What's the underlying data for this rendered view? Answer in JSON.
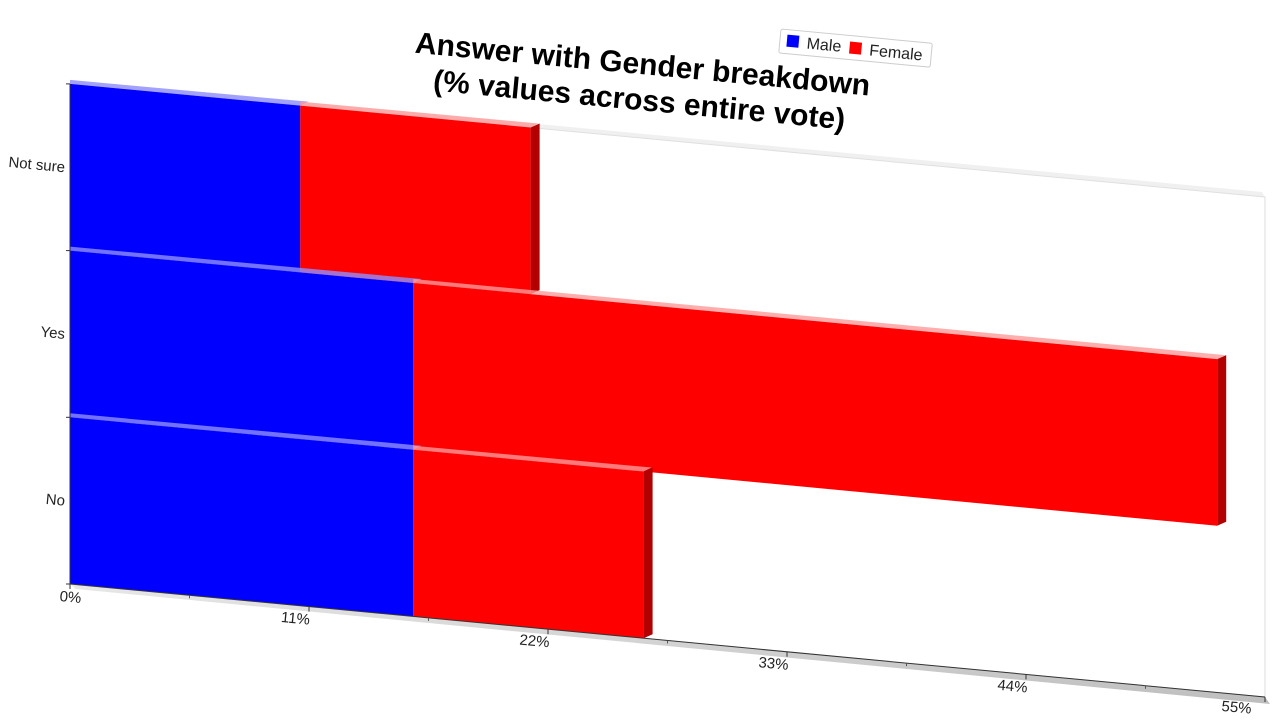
{
  "chart_data": {
    "type": "bar",
    "orientation": "horizontal",
    "stacked": true,
    "title": [
      "Answer with Gender breakdown",
      "(% values across entire vote)"
    ],
    "categories": [
      "Not sure",
      "Yes",
      "No"
    ],
    "series": [
      {
        "name": "Male",
        "color": "#0000ff",
        "values": [
          10.6,
          15.8,
          15.8
        ]
      },
      {
        "name": "Female",
        "color": "#ff0000",
        "values": [
          10.6,
          37.0,
          10.6
        ]
      }
    ],
    "xlim": [
      0,
      55
    ],
    "x_ticks": [
      "0%",
      "11%",
      "22%",
      "33%",
      "44%",
      "55%"
    ],
    "legend": "top-right",
    "grid": false
  }
}
